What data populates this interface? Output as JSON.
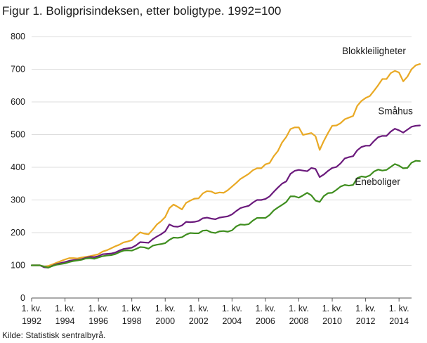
{
  "chart_data": {
    "type": "line",
    "title": "Figur 1. Boligprisindeksen, etter boligtype. 1992=100",
    "source": "Kilde: Statistisk sentralbyrå.",
    "ylim": [
      0,
      800
    ],
    "yticks": [
      0,
      100,
      200,
      300,
      400,
      500,
      600,
      700,
      800
    ],
    "xlim": [
      1992,
      2014.75
    ],
    "xticks": [
      {
        "value": 1992,
        "line1": "1. kv.",
        "line2": "1992"
      },
      {
        "value": 1994,
        "line1": "1. kv.",
        "line2": "1994"
      },
      {
        "value": 1996,
        "line1": "1. kv.",
        "line2": "1996"
      },
      {
        "value": 1998,
        "line1": "1. kv.",
        "line2": "1998"
      },
      {
        "value": 2000,
        "line1": "1. kv.",
        "line2": "2000"
      },
      {
        "value": 2002,
        "line1": "1. kv.",
        "line2": "2002"
      },
      {
        "value": 2004,
        "line1": "1. kv.",
        "line2": "2004"
      },
      {
        "value": 2006,
        "line1": "1. kv.",
        "line2": "2006"
      },
      {
        "value": 2008,
        "line1": "1. kv.",
        "line2": "2008"
      },
      {
        "value": 2010,
        "line1": "1. kv.",
        "line2": "2010"
      },
      {
        "value": 2012,
        "line1": "1. kv.",
        "line2": "2012"
      },
      {
        "value": 2014,
        "line1": "1. kv.",
        "line2": "2014"
      }
    ],
    "grid": "horizontal",
    "x_start": 1992,
    "x_step": 0.25,
    "series": [
      {
        "name": "Blokkleiligheter",
        "color": "#E9A924",
        "values": [
          100,
          100,
          100,
          96,
          98,
          103,
          108,
          113,
          118,
          122,
          122,
          121,
          124,
          126,
          128,
          131,
          134,
          142,
          146,
          152,
          158,
          163,
          170,
          173,
          177,
          190,
          201,
          197,
          195,
          209,
          225,
          235,
          248,
          275,
          286,
          279,
          271,
          291,
          298,
          304,
          305,
          320,
          327,
          326,
          320,
          323,
          322,
          330,
          341,
          352,
          364,
          372,
          380,
          391,
          397,
          397,
          409,
          413,
          434,
          450,
          476,
          493,
          517,
          522,
          522,
          499,
          502,
          505,
          495,
          453,
          481,
          505,
          527,
          528,
          535,
          547,
          552,
          557,
          588,
          603,
          612,
          618,
          634,
          651,
          670,
          670,
          688,
          695,
          690,
          663,
          677,
          700,
          712,
          716
        ]
      },
      {
        "name": "Småhus",
        "color": "#6B1A7C",
        "values": [
          100,
          100,
          100,
          94,
          93,
          99,
          104,
          107,
          110,
          114,
          116,
          117,
          119,
          123,
          126,
          125,
          128,
          134,
          135,
          136,
          139,
          145,
          150,
          152,
          154,
          161,
          171,
          170,
          169,
          180,
          188,
          195,
          204,
          225,
          219,
          218,
          222,
          233,
          232,
          233,
          236,
          244,
          246,
          243,
          241,
          246,
          248,
          250,
          256,
          266,
          275,
          279,
          282,
          292,
          300,
          300,
          303,
          311,
          325,
          338,
          350,
          357,
          380,
          389,
          392,
          390,
          388,
          398,
          395,
          370,
          378,
          389,
          398,
          401,
          412,
          427,
          431,
          434,
          452,
          462,
          466,
          466,
          480,
          492,
          496,
          496,
          509,
          518,
          513,
          506,
          515,
          524,
          527,
          528
        ]
      },
      {
        "name": "Eneboliger",
        "color": "#3F8E1F",
        "values": [
          100,
          100,
          100,
          96,
          93,
          98,
          102,
          104,
          106,
          110,
          113,
          115,
          117,
          121,
          122,
          120,
          124,
          128,
          130,
          131,
          134,
          140,
          145,
          146,
          145,
          150,
          156,
          155,
          151,
          160,
          163,
          165,
          168,
          178,
          185,
          184,
          186,
          194,
          199,
          198,
          198,
          206,
          207,
          201,
          199,
          204,
          205,
          203,
          207,
          219,
          225,
          224,
          226,
          237,
          245,
          245,
          245,
          254,
          268,
          277,
          285,
          294,
          311,
          311,
          307,
          314,
          322,
          314,
          298,
          294,
          312,
          321,
          322,
          331,
          341,
          346,
          344,
          346,
          367,
          372,
          370,
          375,
          387,
          393,
          390,
          392,
          401,
          410,
          405,
          397,
          398,
          414,
          420,
          419
        ]
      }
    ],
    "series_labels": [
      {
        "text": "Blokkleiligheter",
        "series": 0
      },
      {
        "text": "Småhus",
        "series": 1
      },
      {
        "text": "Eneboliger",
        "series": 2
      }
    ]
  }
}
